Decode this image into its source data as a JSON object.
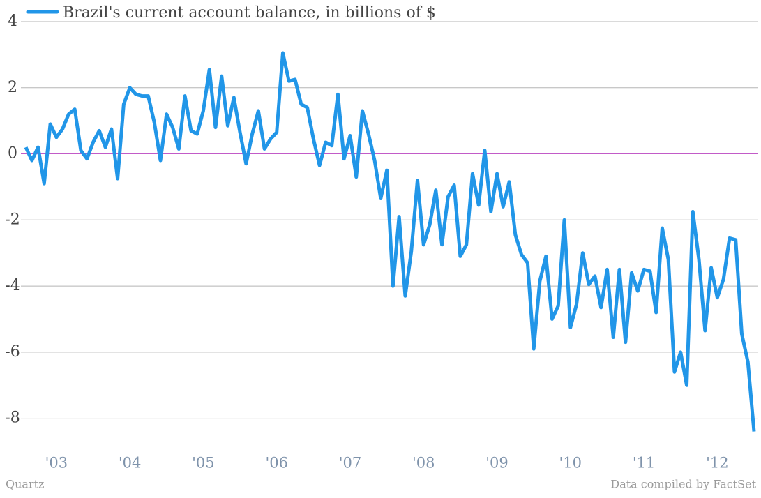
{
  "chart_data": {
    "type": "line",
    "legend": "Brazil's current account balance, in billions of $",
    "source_left": "Quartz",
    "source_right": "Data compiled by FactSet",
    "categories": [
      null,
      null,
      null,
      null,
      null,
      "'03",
      null,
      null,
      null,
      null,
      null,
      null,
      null,
      null,
      null,
      null,
      null,
      "'04",
      null,
      null,
      null,
      null,
      null,
      null,
      null,
      null,
      null,
      null,
      null,
      "'05",
      null,
      null,
      null,
      null,
      null,
      null,
      null,
      null,
      null,
      null,
      null,
      "'06",
      null,
      null,
      null,
      null,
      null,
      null,
      null,
      null,
      null,
      null,
      null,
      "'07",
      null,
      null,
      null,
      null,
      null,
      null,
      null,
      null,
      null,
      null,
      null,
      "'08",
      null,
      null,
      null,
      null,
      null,
      null,
      null,
      null,
      null,
      null,
      null,
      "'09",
      null,
      null,
      null,
      null,
      null,
      null,
      null,
      null,
      null,
      null,
      null,
      "'10",
      null,
      null,
      null,
      null,
      null,
      null,
      null,
      null,
      null,
      null,
      null,
      "'11",
      null,
      null,
      null,
      null,
      null,
      null,
      null,
      null,
      null,
      null,
      null,
      "'12",
      null,
      null,
      null,
      null,
      null,
      null
    ],
    "series": [
      {
        "name": "Brazil's current account balance, in billions of $",
        "color": "#2196e8",
        "values": [
          0.2,
          -0.2,
          0.2,
          -0.9,
          0.9,
          0.5,
          0.75,
          1.2,
          1.35,
          0.1,
          -0.15,
          0.35,
          0.7,
          0.2,
          0.75,
          -0.75,
          1.5,
          2.0,
          1.8,
          1.75,
          1.75,
          0.95,
          -0.2,
          1.2,
          0.8,
          0.15,
          1.75,
          0.7,
          0.6,
          1.3,
          2.55,
          0.8,
          2.35,
          0.85,
          1.7,
          0.65,
          -0.3,
          0.6,
          1.3,
          0.15,
          0.45,
          0.65,
          3.05,
          2.2,
          2.25,
          1.5,
          1.4,
          0.45,
          -0.35,
          0.35,
          0.25,
          1.8,
          -0.15,
          0.55,
          -0.7,
          1.3,
          0.6,
          -0.2,
          -1.35,
          -0.5,
          -4.0,
          -1.9,
          -4.3,
          -2.95,
          -0.8,
          -2.75,
          -2.15,
          -1.1,
          -2.75,
          -1.3,
          -0.95,
          -3.1,
          -2.75,
          -0.6,
          -1.55,
          0.1,
          -1.75,
          -0.6,
          -1.6,
          -0.85,
          -2.45,
          -3.05,
          -3.3,
          -5.9,
          -3.85,
          -3.1,
          -5.0,
          -4.6,
          -2.0,
          -5.25,
          -4.55,
          -3.0,
          -3.95,
          -3.7,
          -4.65,
          -3.5,
          -5.55,
          -3.5,
          -5.7,
          -3.6,
          -4.15,
          -3.5,
          -3.55,
          -4.8,
          -2.25,
          -3.2,
          -6.6,
          -6.0,
          -7.0,
          -1.75,
          -3.2,
          -5.35,
          -3.45,
          -4.35,
          -3.8,
          -2.55,
          -2.6,
          -5.45,
          -6.3,
          -8.4
        ]
      }
    ],
    "ylim": [
      -9,
      4
    ],
    "yticks": [
      -8,
      -6,
      -4,
      -2,
      0,
      2,
      4
    ],
    "grid": true,
    "zero_line_color": "#c25bc8"
  }
}
